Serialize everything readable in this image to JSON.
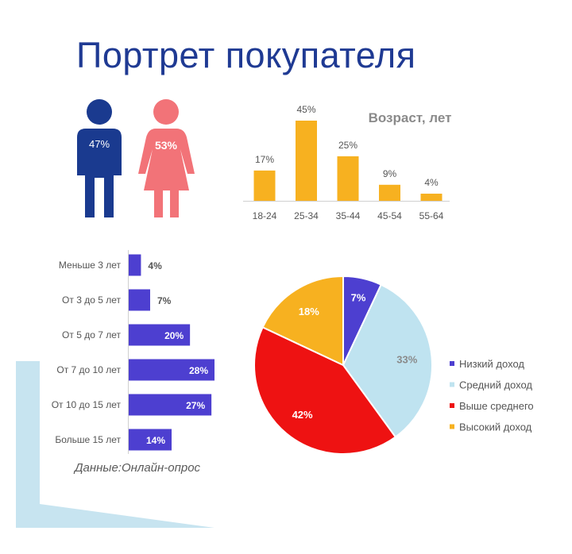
{
  "title": "Портрет покупателя",
  "note": "Данные:Онлайн-опрос",
  "colors": {
    "title": "#1f3a93",
    "male": "#1a3a8f",
    "female": "#f27378",
    "age_bar": "#f7b120",
    "exp_bar": "#4d3fd0",
    "pie": [
      "#4d3fd0",
      "#bfe3f0",
      "#ee1212",
      "#f7b120"
    ],
    "decor": "#c7e4f0"
  },
  "chart_data": [
    {
      "type": "pictogram",
      "categories": [
        "male",
        "female"
      ],
      "values": [
        47,
        53
      ],
      "labels": [
        "47%",
        "53%"
      ]
    },
    {
      "type": "bar",
      "title": "Возраст, лет",
      "categories": [
        "18-24",
        "25-34",
        "35-44",
        "45-54",
        "55-64"
      ],
      "values": [
        17,
        45,
        25,
        9,
        4
      ],
      "labels": [
        "17%",
        "45%",
        "25%",
        "9%",
        "4%"
      ],
      "ylim": [
        0,
        45
      ],
      "grid": false
    },
    {
      "type": "bar",
      "orientation": "horizontal",
      "categories": [
        "Меньше 3 лет",
        "От 3 до 5 лет",
        "От 5 до 7 лет",
        "От 7 до 10 лет",
        "От 10 до 15 лет",
        "Больше 15 лет"
      ],
      "values": [
        4,
        7,
        20,
        28,
        27,
        14
      ],
      "labels": [
        "4%",
        "7%",
        "20%",
        "28%",
        "27%",
        "14%"
      ],
      "xlim": [
        0,
        28
      ],
      "grid": false
    },
    {
      "type": "pie",
      "categories": [
        "Низкий доход",
        "Средний доход",
        "Выше среднего",
        "Высокий доход"
      ],
      "values": [
        7,
        33,
        42,
        18
      ],
      "labels": [
        "7%",
        "33%",
        "42%",
        "18%"
      ],
      "legend": "right"
    }
  ]
}
